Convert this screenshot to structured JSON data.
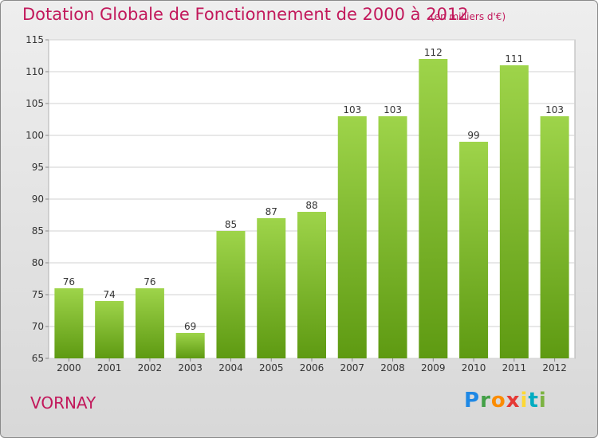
{
  "title": "Dotation Globale de Fonctionnement de 2000 à 2012",
  "subtitle": "(en milliers d'€)",
  "place": "VORNAY",
  "brand": {
    "letters": [
      "P",
      "r",
      "o",
      "x",
      "i",
      "t",
      "i"
    ],
    "colors": [
      "#1e88e5",
      "#43a047",
      "#fb8c00",
      "#e53935",
      "#fdd835",
      "#00acc1",
      "#7cb342"
    ]
  },
  "colors": {
    "bar_light": "#9ed44a",
    "bar_dark": "#5e9a12",
    "title": "#c2185b"
  },
  "chart_data": {
    "type": "bar",
    "categories": [
      "2000",
      "2001",
      "2002",
      "2003",
      "2004",
      "2005",
      "2006",
      "2007",
      "2008",
      "2009",
      "2010",
      "2011",
      "2012"
    ],
    "values": [
      76,
      74,
      76,
      69,
      85,
      87,
      88,
      103,
      103,
      112,
      99,
      111,
      103
    ],
    "ylim": [
      65,
      115
    ],
    "yticks": [
      65,
      70,
      75,
      80,
      85,
      90,
      95,
      100,
      105,
      110,
      115
    ],
    "grid": true
  }
}
